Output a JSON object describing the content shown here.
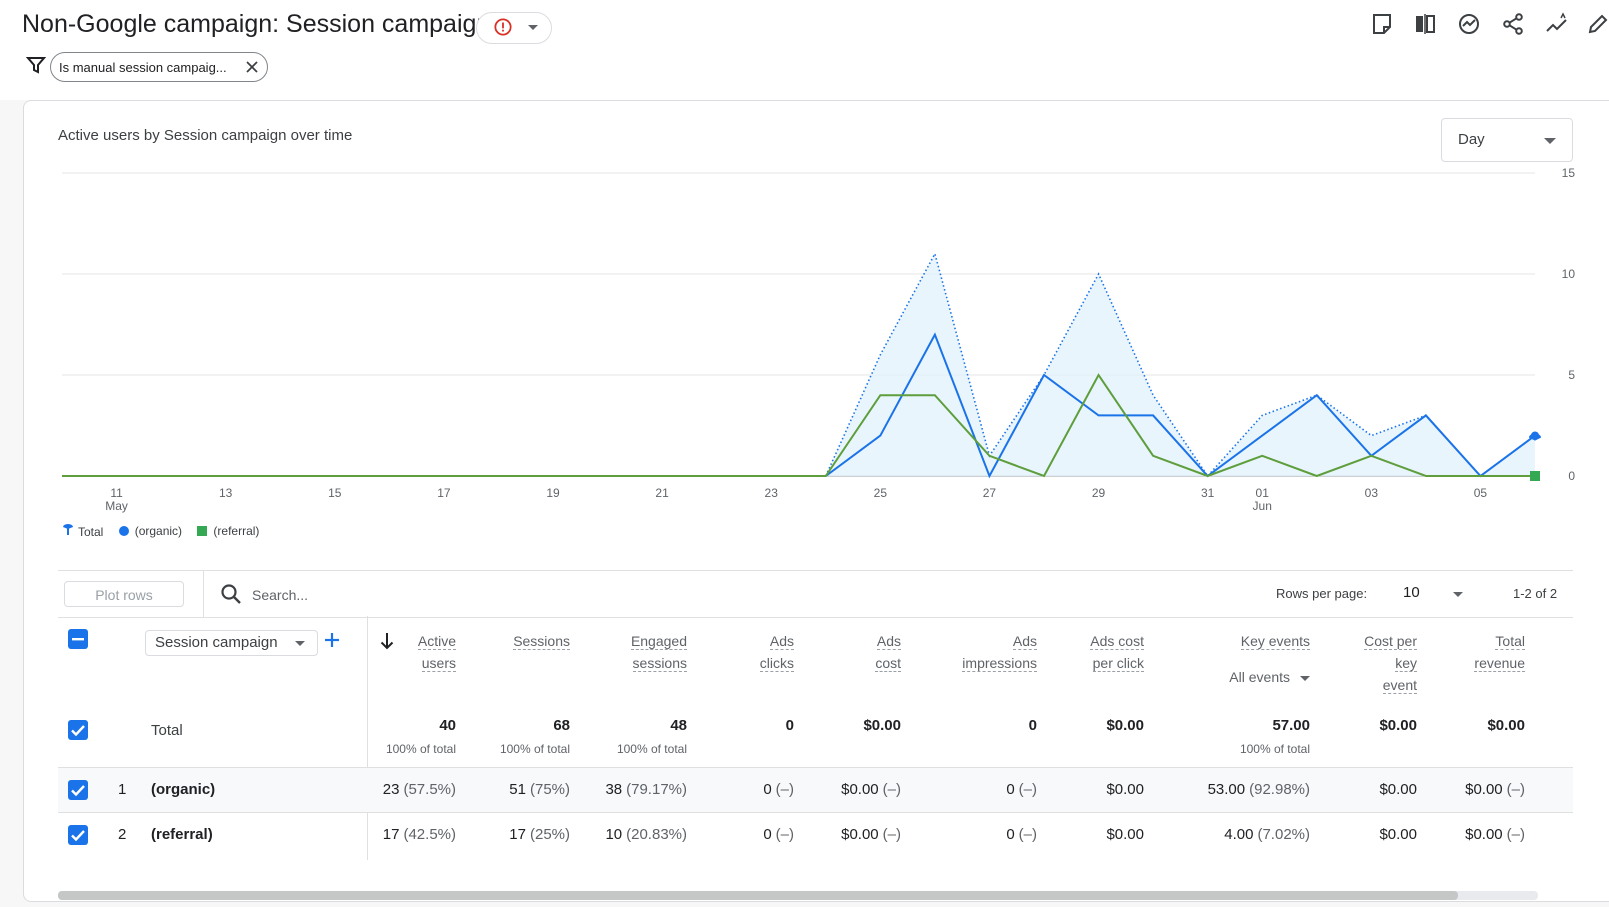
{
  "header": {
    "title": "Non-Google campaign: Session campaign",
    "toolbar_icons": [
      "notes-icon",
      "compare-icon",
      "insights-icon",
      "share-icon",
      "trend-icon",
      "edit-icon"
    ]
  },
  "filter": {
    "chip_label": "Is manual session campaig..."
  },
  "chart_card": {
    "title": "Active users by Session campaign over time",
    "granularity": "Day"
  },
  "chart_data": {
    "type": "line",
    "title": "Active users by Session campaign over time",
    "x_tick_labels": [
      "11",
      "13",
      "15",
      "17",
      "19",
      "21",
      "23",
      "25",
      "27",
      "29",
      "31",
      "01",
      "03",
      "05"
    ],
    "x_month_labels": {
      "11": "May",
      "01": "Jun"
    },
    "x": [
      "May 10",
      "May 11",
      "May 12",
      "May 13",
      "May 14",
      "May 15",
      "May 16",
      "May 17",
      "May 18",
      "May 19",
      "May 20",
      "May 21",
      "May 22",
      "May 23",
      "May 24",
      "May 25",
      "May 26",
      "May 27",
      "May 28",
      "May 29",
      "May 30",
      "May 31",
      "Jun 1",
      "Jun 2",
      "Jun 3",
      "Jun 4",
      "Jun 5",
      "Jun 6"
    ],
    "series": [
      {
        "name": "Total",
        "style": "dotted-area",
        "color": "#1a73e8",
        "values": [
          0,
          0,
          0,
          0,
          0,
          0,
          0,
          0,
          0,
          0,
          0,
          0,
          0,
          0,
          0,
          6,
          11,
          1,
          5,
          10,
          4,
          0,
          3,
          4,
          2,
          3,
          0,
          2
        ]
      },
      {
        "name": "(organic)",
        "color": "#1a73e8",
        "values": [
          0,
          0,
          0,
          0,
          0,
          0,
          0,
          0,
          0,
          0,
          0,
          0,
          0,
          0,
          0,
          2,
          7,
          0,
          5,
          3,
          3,
          0,
          2,
          4,
          1,
          3,
          0,
          2
        ]
      },
      {
        "name": "(referral)",
        "color": "#5e9e3c",
        "values": [
          0,
          0,
          0,
          0,
          0,
          0,
          0,
          0,
          0,
          0,
          0,
          0,
          0,
          0,
          0,
          4,
          4,
          1,
          0,
          5,
          1,
          0,
          1,
          0,
          1,
          0,
          0,
          0
        ]
      }
    ],
    "ylim": [
      0,
      15
    ],
    "y_ticks": [
      0,
      5,
      10,
      15
    ],
    "y_axis_side": "right",
    "grid": true,
    "legend": "bottom-left"
  },
  "table": {
    "plot_rows_label": "Plot rows",
    "search_placeholder": "Search...",
    "rows_per_page_label": "Rows per page:",
    "rows_per_page_value": "10",
    "pagination": "1-2 of 2",
    "dimension_label": "Session campaign",
    "columns": [
      {
        "key": "active_users",
        "label_lines": [
          "Active",
          "users"
        ]
      },
      {
        "key": "sessions",
        "label_lines": [
          "Sessions"
        ]
      },
      {
        "key": "engaged_sessions",
        "label_lines": [
          "Engaged",
          "sessions"
        ]
      },
      {
        "key": "ads_clicks",
        "label_lines": [
          "Ads",
          "clicks"
        ]
      },
      {
        "key": "ads_cost",
        "label_lines": [
          "Ads",
          "cost"
        ]
      },
      {
        "key": "ads_impressions",
        "label_lines": [
          "Ads",
          "impressions"
        ]
      },
      {
        "key": "ads_cpc",
        "label_lines": [
          "Ads cost",
          "per click"
        ]
      },
      {
        "key": "key_events",
        "label_lines": [
          "Key events"
        ],
        "sub": "All events"
      },
      {
        "key": "cost_per_key_event",
        "label_lines": [
          "Cost per",
          "key",
          "event"
        ]
      },
      {
        "key": "total_revenue",
        "label_lines": [
          "Total",
          "revenue"
        ]
      }
    ],
    "total": {
      "label": "Total",
      "values": [
        "40",
        "68",
        "48",
        "0",
        "$0.00",
        "0",
        "$0.00",
        "57.00",
        "$0.00",
        "$0.00"
      ],
      "subs": [
        "100% of total",
        "100% of total",
        "100% of total",
        "",
        "",
        "",
        "",
        "100% of total",
        "",
        ""
      ]
    },
    "rows": [
      {
        "index": "1",
        "name": "(organic)",
        "values": [
          [
            "23",
            "(57.5%)"
          ],
          [
            "51",
            "(75%)"
          ],
          [
            "38",
            "(79.17%)"
          ],
          [
            "0",
            "(–)"
          ],
          [
            "$0.00",
            "(–)"
          ],
          [
            "0",
            "(–)"
          ],
          [
            "$0.00",
            ""
          ],
          [
            "53.00",
            "(92.98%)"
          ],
          [
            "$0.00",
            ""
          ],
          [
            "$0.00",
            "(–)"
          ]
        ]
      },
      {
        "index": "2",
        "name": "(referral)",
        "values": [
          [
            "17",
            "(42.5%)"
          ],
          [
            "17",
            "(25%)"
          ],
          [
            "10",
            "(20.83%)"
          ],
          [
            "0",
            "(–)"
          ],
          [
            "$0.00",
            "(–)"
          ],
          [
            "0",
            "(–)"
          ],
          [
            "$0.00",
            ""
          ],
          [
            "4.00",
            "(7.02%)"
          ],
          [
            "$0.00",
            ""
          ],
          [
            "$0.00",
            "(–)"
          ]
        ]
      }
    ]
  }
}
